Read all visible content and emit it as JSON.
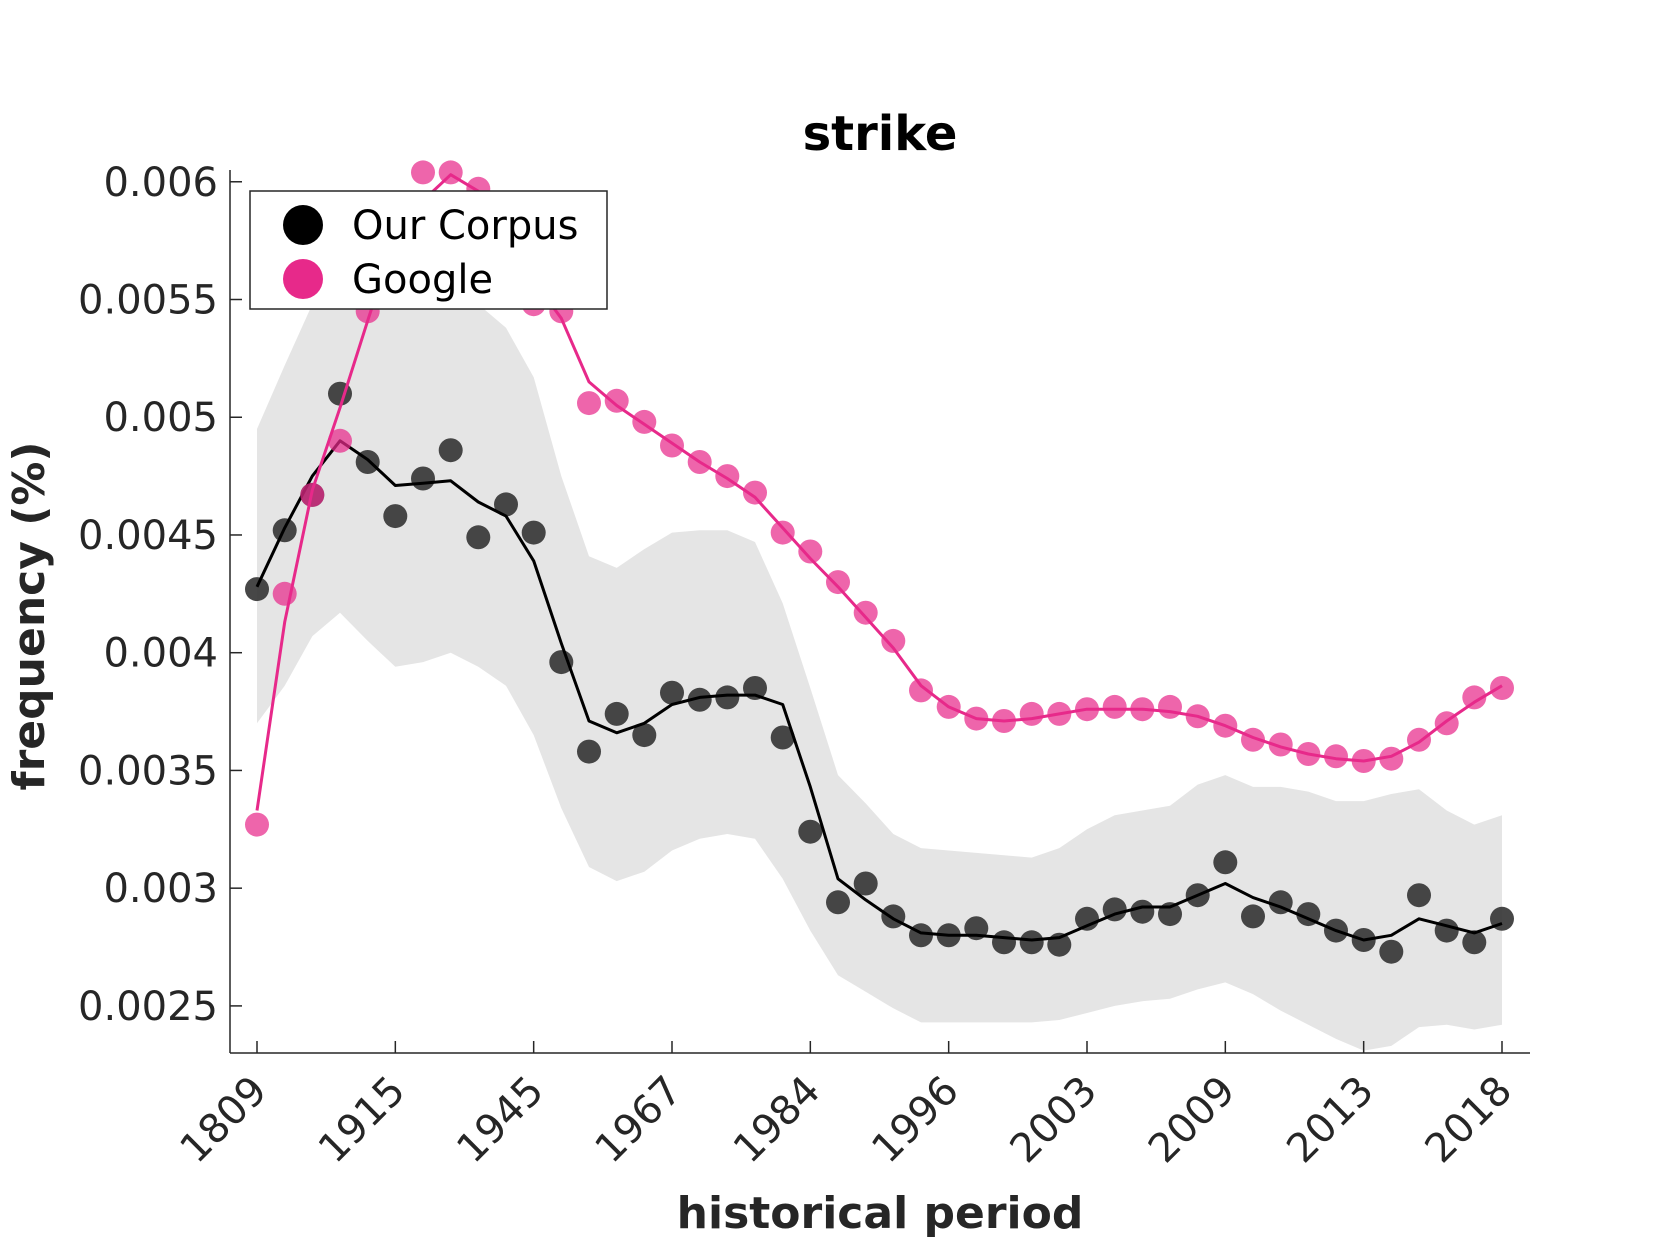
{
  "chart_data": {
    "type": "line",
    "title": "strike",
    "xlabel": "historical period",
    "ylabel": "frequency (%)",
    "ylim": [
      0.0023,
      0.00605
    ],
    "y_ticks": [
      0.0025,
      0.003,
      0.0035,
      0.004,
      0.0045,
      0.005,
      0.0055,
      0.006
    ],
    "y_tick_labels": [
      "0.0025",
      "0.003",
      "0.0035",
      "0.004",
      "0.0045",
      "0.005",
      "0.0055",
      "0.006"
    ],
    "x_tick_labels": [
      "1809",
      "1915",
      "1945",
      "1967",
      "1984",
      "1996",
      "2003",
      "2009",
      "2013",
      "2018"
    ],
    "x_tick_positions": [
      0,
      5,
      10,
      15,
      20,
      25,
      30,
      35,
      40,
      45
    ],
    "legend_position": "top-left",
    "grid": false,
    "band_color": "#e5e5e5",
    "series": [
      {
        "name": "Our Corpus",
        "color": "#000000",
        "point_color": "#333333",
        "points": [
          0.00427,
          0.00452,
          0.00467,
          0.0051,
          0.00481,
          0.00458,
          0.00474,
          0.00486,
          0.00449,
          0.00463,
          0.00451,
          0.00396,
          0.00358,
          0.00374,
          0.00365,
          0.00383,
          0.0038,
          0.00381,
          0.00385,
          0.00364,
          0.00324,
          0.00294,
          0.00302,
          0.00288,
          0.0028,
          0.0028,
          0.00283,
          0.00277,
          0.00277,
          0.00276,
          0.00287,
          0.00291,
          0.0029,
          0.00289,
          0.00297,
          0.00311,
          0.00288,
          0.00294,
          0.00289,
          0.00282,
          0.00278,
          0.00273,
          0.00297,
          0.00282,
          0.00277,
          0.00287
        ],
        "smooth": [
          0.00428,
          0.00453,
          0.00475,
          0.0049,
          0.00482,
          0.00471,
          0.00472,
          0.00473,
          0.00464,
          0.00458,
          0.00439,
          0.00404,
          0.00371,
          0.00366,
          0.0037,
          0.00378,
          0.00381,
          0.00382,
          0.00382,
          0.00378,
          0.00343,
          0.00304,
          0.00295,
          0.00287,
          0.00281,
          0.0028,
          0.0028,
          0.00279,
          0.00278,
          0.00279,
          0.00284,
          0.00289,
          0.00292,
          0.00292,
          0.00297,
          0.00302,
          0.00296,
          0.00292,
          0.00287,
          0.00282,
          0.00278,
          0.0028,
          0.00287,
          0.00284,
          0.00281,
          0.00285
        ],
        "band_upper": [
          0.00495,
          0.00522,
          0.00548,
          0.00566,
          0.00571,
          0.00568,
          0.00567,
          0.00563,
          0.00548,
          0.00538,
          0.00517,
          0.00475,
          0.00441,
          0.00436,
          0.00444,
          0.00451,
          0.00452,
          0.00452,
          0.00447,
          0.00421,
          0.00385,
          0.00348,
          0.00336,
          0.00323,
          0.00317,
          0.00316,
          0.00315,
          0.00314,
          0.00313,
          0.00317,
          0.00325,
          0.00331,
          0.00333,
          0.00335,
          0.00344,
          0.00348,
          0.00343,
          0.00343,
          0.00341,
          0.00337,
          0.00337,
          0.0034,
          0.00342,
          0.00333,
          0.00327,
          0.00331
        ],
        "band_lower": [
          0.0037,
          0.00386,
          0.00407,
          0.00417,
          0.00405,
          0.00394,
          0.00396,
          0.004,
          0.00394,
          0.00386,
          0.00365,
          0.00334,
          0.00309,
          0.00303,
          0.00307,
          0.00316,
          0.00321,
          0.00323,
          0.00321,
          0.00304,
          0.00282,
          0.00263,
          0.00256,
          0.00249,
          0.00243,
          0.00243,
          0.00243,
          0.00243,
          0.00243,
          0.00244,
          0.00247,
          0.0025,
          0.00252,
          0.00253,
          0.00257,
          0.0026,
          0.00255,
          0.00248,
          0.00242,
          0.00236,
          0.00231,
          0.00233,
          0.00241,
          0.00242,
          0.0024,
          0.00242
        ]
      },
      {
        "name": "Google",
        "color": "#e7298a",
        "points": [
          0.00327,
          0.00425,
          0.00467,
          0.0049,
          0.00545,
          0.00571,
          0.00604,
          0.00604,
          0.00597,
          0.00573,
          0.00548,
          0.00545,
          0.00506,
          0.00507,
          0.00498,
          0.00488,
          0.00481,
          0.00475,
          0.00468,
          0.00451,
          0.00443,
          0.0043,
          0.00417,
          0.00405,
          0.00384,
          0.00377,
          0.00372,
          0.00371,
          0.00374,
          0.00374,
          0.00376,
          0.00377,
          0.00376,
          0.00377,
          0.00373,
          0.00369,
          0.00363,
          0.00361,
          0.00357,
          0.00356,
          0.00354,
          0.00355,
          0.00363,
          0.0037,
          0.00381,
          0.00385
        ],
        "smooth": [
          0.00333,
          0.00413,
          0.00469,
          0.00504,
          0.00541,
          0.00577,
          0.00592,
          0.00603,
          0.00596,
          0.0058,
          0.00558,
          0.00542,
          0.00515,
          0.00505,
          0.00497,
          0.00489,
          0.00481,
          0.00474,
          0.00466,
          0.00453,
          0.0044,
          0.00428,
          0.00415,
          0.00402,
          0.00386,
          0.00377,
          0.00372,
          0.00371,
          0.00372,
          0.00374,
          0.00376,
          0.00376,
          0.00376,
          0.00375,
          0.00373,
          0.00369,
          0.00364,
          0.0036,
          0.00357,
          0.00355,
          0.00354,
          0.00356,
          0.00362,
          0.00371,
          0.00379,
          0.00386
        ]
      }
    ]
  }
}
